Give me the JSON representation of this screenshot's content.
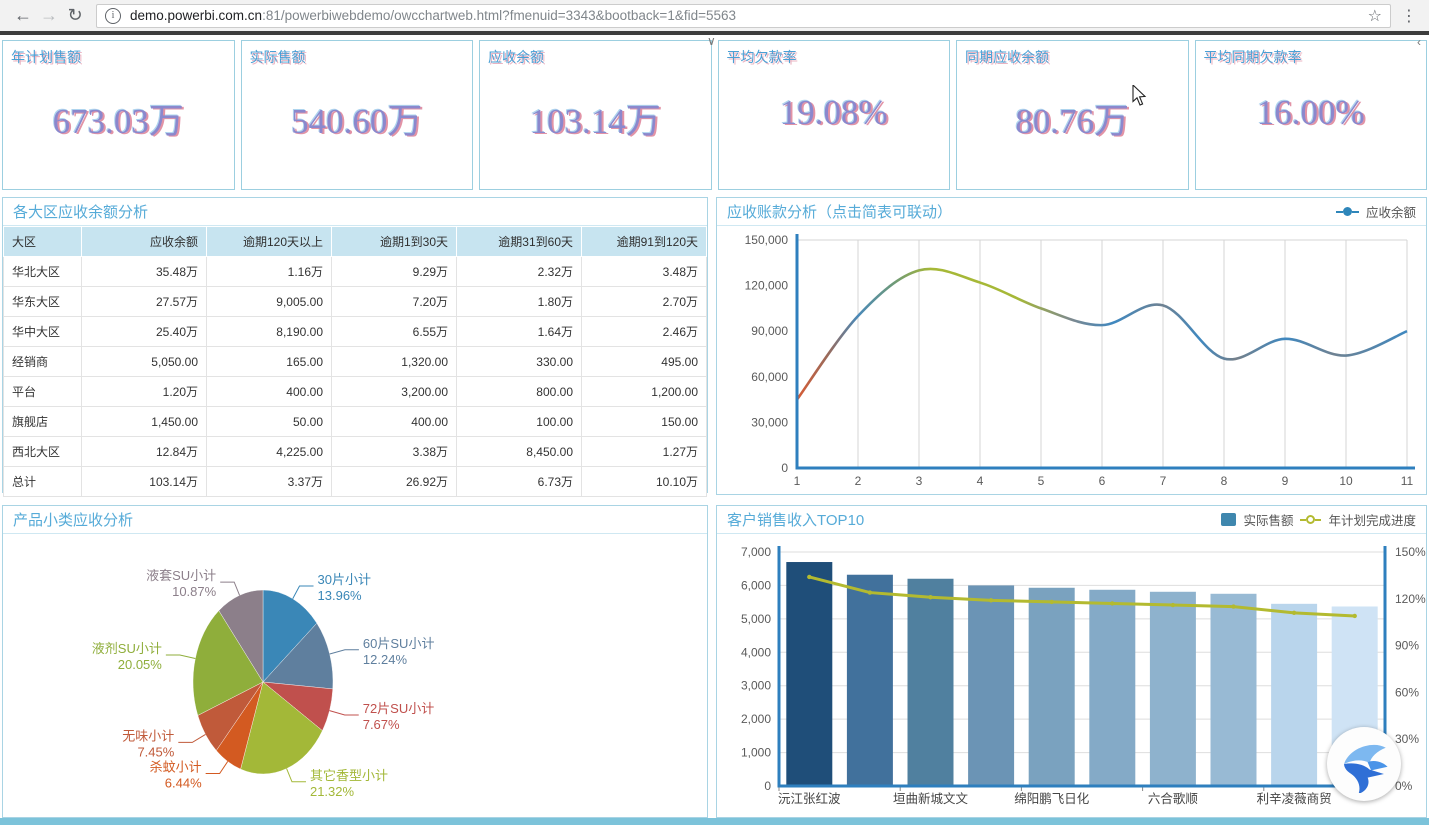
{
  "browser": {
    "url_host": "demo.powerbi.com.cn",
    "url_rest": ":81/powerbiwebdemo/owcchartweb.html?fmenuid=3343&bootback=1&fid=5563",
    "back_icon": "back-arrow-icon",
    "forward_icon": "forward-arrow-icon",
    "refresh_icon": "refresh-icon",
    "page_info_icon": "page-info-icon",
    "bookmark_icon": "bookmark-star-icon",
    "menu_icon": "kebab-menu-icon"
  },
  "kpi_cards": [
    {
      "label": "年计划售额",
      "value": "673.03万"
    },
    {
      "label": "实际售额",
      "value": "540.60万"
    },
    {
      "label": "应收余额",
      "value": "103.14万"
    },
    {
      "label": "平均欠款率",
      "value": "19.08%"
    },
    {
      "label": "同期应收余额",
      "value": "80.76万"
    },
    {
      "label": "平均同期欠款率",
      "value": "16.00%"
    }
  ],
  "region_table": {
    "title": "各大区应收余额分析",
    "columns": [
      "大区",
      "应收余额",
      "逾期120天以上",
      "逾期1到30天",
      "逾期31到60天",
      "逾期91到120天"
    ],
    "rows": [
      [
        "华北大区",
        "35.48万",
        "1.16万",
        "9.29万",
        "2.32万",
        "3.48万"
      ],
      [
        "华东大区",
        "27.57万",
        "9,005.00",
        "7.20万",
        "1.80万",
        "2.70万"
      ],
      [
        "华中大区",
        "25.40万",
        "8,190.00",
        "6.55万",
        "1.64万",
        "2.46万"
      ],
      [
        "经销商",
        "5,050.00",
        "165.00",
        "1,320.00",
        "330.00",
        "495.00"
      ],
      [
        "平台",
        "1.20万",
        "400.00",
        "3,200.00",
        "800.00",
        "1,200.00"
      ],
      [
        "旗舰店",
        "1,450.00",
        "50.00",
        "400.00",
        "100.00",
        "150.00"
      ],
      [
        "西北大区",
        "12.84万",
        "4,225.00",
        "3.38万",
        "8,450.00",
        "1.27万"
      ],
      [
        "总计",
        "103.14万",
        "3.37万",
        "26.92万",
        "6.73万",
        "10.10万"
      ]
    ]
  },
  "chart_data": [
    {
      "type": "line",
      "title": "应收账款分析（点击简表可联动）",
      "legend": [
        "应收余额"
      ],
      "x": [
        1,
        2,
        3,
        4,
        5,
        6,
        7,
        8,
        9,
        10,
        11
      ],
      "x_tick_labels": [
        "1",
        "2",
        "3",
        "4",
        "5",
        "6",
        "7",
        "8",
        "9",
        "10",
        "11"
      ],
      "series": [
        {
          "name": "应收余额",
          "values": [
            45000,
            100000,
            130000,
            122000,
            105000,
            94000,
            107000,
            72000,
            85000,
            74000,
            90000
          ]
        }
      ],
      "ylim": [
        0,
        150000
      ],
      "y_tick_labels": [
        "150,000",
        "120,000",
        "90,000",
        "60,000",
        "30,000",
        "0"
      ],
      "grid": "vertical",
      "legend_position": "top-right",
      "axis_color": "#2e7fbe",
      "line_gradient": [
        {
          "o": 0,
          "c": "#d75c35"
        },
        {
          "o": 5,
          "c": "#9a6a5a"
        },
        {
          "o": 10,
          "c": "#4a89b8"
        },
        {
          "o": 16,
          "c": "#6f9a76"
        },
        {
          "o": 22,
          "c": "#a6b837"
        },
        {
          "o": 36,
          "c": "#a6b837"
        },
        {
          "o": 45,
          "c": "#7d898f"
        },
        {
          "o": 52,
          "c": "#3f88c0"
        },
        {
          "o": 60,
          "c": "#6f8292"
        },
        {
          "o": 66,
          "c": "#3f88c0"
        },
        {
          "o": 72,
          "c": "#75808a"
        },
        {
          "o": 80,
          "c": "#3f88c0"
        },
        {
          "o": 88,
          "c": "#6f8292"
        },
        {
          "o": 100,
          "c": "#3f88c0"
        }
      ]
    },
    {
      "type": "pie",
      "title": "产品小类应收分析",
      "slices": [
        {
          "label": "30片小计",
          "pct": 13.96,
          "pct_label": "13.96%",
          "color": "#3a87b7"
        },
        {
          "label": "60片SU小计",
          "pct": 12.24,
          "pct_label": "12.24%",
          "color": "#5f7f9e"
        },
        {
          "label": "72片SU小计",
          "pct": 7.67,
          "pct_label": "7.67%",
          "color": "#c0504d"
        },
        {
          "label": "其它香型小计",
          "pct": 21.32,
          "pct_label": "21.32%",
          "color": "#a3b838"
        },
        {
          "label": "杀蚊小计",
          "pct": 6.44,
          "pct_label": "6.44%",
          "color": "#d35a21"
        },
        {
          "label": "无味小计",
          "pct": 7.45,
          "pct_label": "7.45%",
          "color": "#c05a3a"
        },
        {
          "label": "液剂SU小计",
          "pct": 20.05,
          "pct_label": "20.05%",
          "color": "#8fae3b"
        },
        {
          "label": "液套SU小计",
          "pct": 10.87,
          "pct_label": "10.87%",
          "color": "#8c7f8a"
        }
      ]
    },
    {
      "type": "bar",
      "title": "客户销售收入TOP10",
      "legend": [
        "实际售额",
        "年计划完成进度"
      ],
      "x_tick_labels": [
        "沅江张红波",
        "垣曲新城文文",
        "绵阳鹏飞日化",
        "六合歌顺",
        "利辛凌薇商贸"
      ],
      "x_tick_positions": [
        1,
        3,
        5,
        7,
        9
      ],
      "series_bar": {
        "name": "实际售额",
        "values": [
          6700,
          6320,
          6200,
          6000,
          5930,
          5870,
          5810,
          5750,
          5450,
          5370
        ]
      },
      "series_line": {
        "name": "年计划完成进度",
        "values": [
          134,
          124,
          121,
          119,
          118,
          117,
          116,
          115,
          111,
          109
        ]
      },
      "ylim_left": [
        0,
        7000
      ],
      "ylim_right": [
        0,
        150
      ],
      "y_left_tick_labels": [
        "7,000",
        "6,000",
        "5,000",
        "4,000",
        "3,000",
        "2,000",
        "1,000",
        "0"
      ],
      "y_right_tick_labels": [
        "150%",
        "120%",
        "90%",
        "60%",
        "30%",
        "0%"
      ],
      "bar_colors": [
        "#1f4e79",
        "#41719c",
        "#50809f",
        "#6b94b5",
        "#7aa2bf",
        "#84aac7",
        "#8eb2cd",
        "#98bad4",
        "#b9d5ec",
        "#cfe3f5"
      ],
      "line_color": "#b3ba30",
      "axis_color": "#2e7fbe",
      "grid": "horizontal",
      "legend_position": "top-right"
    }
  ],
  "floating_widget": {
    "icon": "xunlei-bird-icon"
  },
  "colors": {
    "panel_border": "#a9d4e4",
    "panel_title": "#56abd8",
    "table_header_bg": "#c7e4f0",
    "kpi_title": "#4aa0d5",
    "kpi_value": "#8b88cd",
    "axis_blue": "#2e7fbe",
    "bottom_strip": "#7cc3da"
  }
}
